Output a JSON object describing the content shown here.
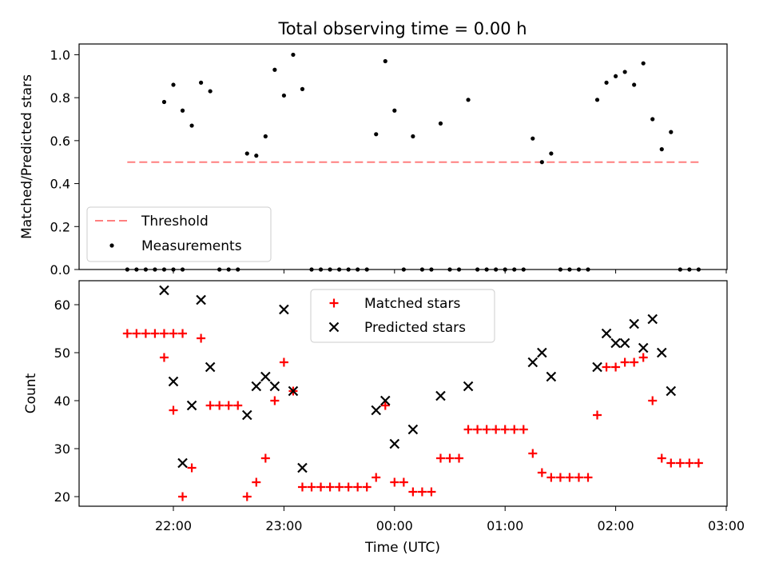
{
  "chart_data": [
    {
      "type": "scatter",
      "title": "Total observing time = 0.00 h",
      "xlabel": "",
      "ylabel": "Matched/Predicted stars",
      "ylim": [
        0,
        1.05
      ],
      "yticks": [
        "0.0",
        "0.2",
        "0.4",
        "0.6",
        "0.8",
        "1.0"
      ],
      "legend_position": "lower-left",
      "threshold": {
        "name": "Threshold",
        "value": 0.5,
        "color": "#ff7f7f",
        "x_start": "21:35",
        "x_end": "02:45"
      },
      "series": [
        {
          "name": "Measurements",
          "color": "#000000",
          "points": [
            [
              "21:35",
              0
            ],
            [
              "21:40",
              0
            ],
            [
              "21:45",
              0
            ],
            [
              "21:50",
              0
            ],
            [
              "21:55",
              0
            ],
            [
              "22:00",
              0
            ],
            [
              "22:05",
              0
            ],
            [
              "21:55",
              0.78
            ],
            [
              "22:00",
              0.86
            ],
            [
              "22:05",
              0.74
            ],
            [
              "22:10",
              0.67
            ],
            [
              "22:15",
              0.87
            ],
            [
              "22:20",
              0.83
            ],
            [
              "22:25",
              0
            ],
            [
              "22:30",
              0
            ],
            [
              "22:35",
              0
            ],
            [
              "22:40",
              0.54
            ],
            [
              "22:45",
              0.53
            ],
            [
              "22:50",
              0.62
            ],
            [
              "22:55",
              0.93
            ],
            [
              "23:00",
              0.81
            ],
            [
              "23:05",
              1.0
            ],
            [
              "23:10",
              0.84
            ],
            [
              "23:15",
              0
            ],
            [
              "23:20",
              0
            ],
            [
              "23:25",
              0
            ],
            [
              "23:30",
              0
            ],
            [
              "23:35",
              0
            ],
            [
              "23:40",
              0
            ],
            [
              "23:45",
              0
            ],
            [
              "23:50",
              0.63
            ],
            [
              "23:55",
              0.97
            ],
            [
              "00:00",
              0.74
            ],
            [
              "00:05",
              0
            ],
            [
              "00:10",
              0.62
            ],
            [
              "00:15",
              0
            ],
            [
              "00:20",
              0
            ],
            [
              "00:25",
              0.68
            ],
            [
              "00:30",
              0
            ],
            [
              "00:35",
              0
            ],
            [
              "00:40",
              0.79
            ],
            [
              "00:45",
              0
            ],
            [
              "00:50",
              0
            ],
            [
              "00:55",
              0
            ],
            [
              "01:00",
              0
            ],
            [
              "01:05",
              0
            ],
            [
              "01:10",
              0
            ],
            [
              "01:15",
              0.61
            ],
            [
              "01:20",
              0.5
            ],
            [
              "01:25",
              0.54
            ],
            [
              "01:30",
              0
            ],
            [
              "01:35",
              0
            ],
            [
              "01:40",
              0
            ],
            [
              "01:45",
              0
            ],
            [
              "01:50",
              0.79
            ],
            [
              "01:55",
              0.87
            ],
            [
              "02:00",
              0.9
            ],
            [
              "02:05",
              0.92
            ],
            [
              "02:10",
              0.86
            ],
            [
              "02:15",
              0.96
            ],
            [
              "02:20",
              0.7
            ],
            [
              "02:25",
              0.56
            ],
            [
              "02:30",
              0.64
            ],
            [
              "02:35",
              0
            ],
            [
              "02:40",
              0
            ],
            [
              "02:45",
              0
            ]
          ]
        }
      ]
    },
    {
      "type": "scatter",
      "title": "",
      "xlabel": "Time (UTC)",
      "ylabel": "Count",
      "ylim": [
        18,
        65
      ],
      "yticks": [
        "20",
        "30",
        "40",
        "50",
        "60"
      ],
      "xticks": [
        "22:00",
        "23:00",
        "00:00",
        "01:00",
        "02:00",
        "03:00"
      ],
      "legend_position": "upper-center",
      "series": [
        {
          "name": "Matched stars",
          "color": "#ff0000",
          "marker": "+",
          "points": [
            [
              "21:35",
              54
            ],
            [
              "21:40",
              54
            ],
            [
              "21:45",
              54
            ],
            [
              "21:50",
              54
            ],
            [
              "21:55",
              54
            ],
            [
              "22:00",
              54
            ],
            [
              "22:05",
              54
            ],
            [
              "21:55",
              49
            ],
            [
              "22:00",
              38
            ],
            [
              "22:05",
              20
            ],
            [
              "22:10",
              26
            ],
            [
              "22:15",
              53
            ],
            [
              "22:20",
              39
            ],
            [
              "22:25",
              39
            ],
            [
              "22:30",
              39
            ],
            [
              "22:35",
              39
            ],
            [
              "22:40",
              20
            ],
            [
              "22:45",
              23
            ],
            [
              "22:50",
              28
            ],
            [
              "22:55",
              40
            ],
            [
              "23:00",
              48
            ],
            [
              "23:05",
              42
            ],
            [
              "23:10",
              22
            ],
            [
              "23:15",
              22
            ],
            [
              "23:20",
              22
            ],
            [
              "23:25",
              22
            ],
            [
              "23:30",
              22
            ],
            [
              "23:35",
              22
            ],
            [
              "23:40",
              22
            ],
            [
              "23:45",
              22
            ],
            [
              "23:50",
              24
            ],
            [
              "23:55",
              39
            ],
            [
              "00:00",
              23
            ],
            [
              "00:05",
              23
            ],
            [
              "00:10",
              21
            ],
            [
              "00:15",
              21
            ],
            [
              "00:20",
              21
            ],
            [
              "00:25",
              28
            ],
            [
              "00:30",
              28
            ],
            [
              "00:35",
              28
            ],
            [
              "00:40",
              34
            ],
            [
              "00:45",
              34
            ],
            [
              "00:50",
              34
            ],
            [
              "00:55",
              34
            ],
            [
              "01:00",
              34
            ],
            [
              "01:05",
              34
            ],
            [
              "01:10",
              34
            ],
            [
              "01:15",
              29
            ],
            [
              "01:20",
              25
            ],
            [
              "01:25",
              24
            ],
            [
              "01:30",
              24
            ],
            [
              "01:35",
              24
            ],
            [
              "01:40",
              24
            ],
            [
              "01:45",
              24
            ],
            [
              "01:50",
              37
            ],
            [
              "01:55",
              47
            ],
            [
              "02:00",
              47
            ],
            [
              "02:05",
              48
            ],
            [
              "02:10",
              48
            ],
            [
              "02:15",
              49
            ],
            [
              "02:20",
              40
            ],
            [
              "02:25",
              28
            ],
            [
              "02:30",
              27
            ],
            [
              "02:35",
              27
            ],
            [
              "02:40",
              27
            ],
            [
              "02:45",
              27
            ]
          ]
        },
        {
          "name": "Predicted stars",
          "color": "#000000",
          "marker": "x",
          "points": [
            [
              "21:55",
              63
            ],
            [
              "22:00",
              44
            ],
            [
              "22:05",
              27
            ],
            [
              "22:10",
              39
            ],
            [
              "22:15",
              61
            ],
            [
              "22:20",
              47
            ],
            [
              "22:40",
              37
            ],
            [
              "22:45",
              43
            ],
            [
              "22:50",
              45
            ],
            [
              "22:55",
              43
            ],
            [
              "23:00",
              59
            ],
            [
              "23:05",
              42
            ],
            [
              "23:10",
              26
            ],
            [
              "23:50",
              38
            ],
            [
              "23:55",
              40
            ],
            [
              "00:00",
              31
            ],
            [
              "00:10",
              34
            ],
            [
              "00:25",
              41
            ],
            [
              "00:40",
              43
            ],
            [
              "01:15",
              48
            ],
            [
              "01:20",
              50
            ],
            [
              "01:25",
              45
            ],
            [
              "01:50",
              47
            ],
            [
              "01:55",
              54
            ],
            [
              "02:00",
              52
            ],
            [
              "02:05",
              52
            ],
            [
              "02:10",
              56
            ],
            [
              "02:15",
              51
            ],
            [
              "02:20",
              57
            ],
            [
              "02:25",
              50
            ],
            [
              "02:30",
              42
            ]
          ]
        }
      ]
    }
  ]
}
